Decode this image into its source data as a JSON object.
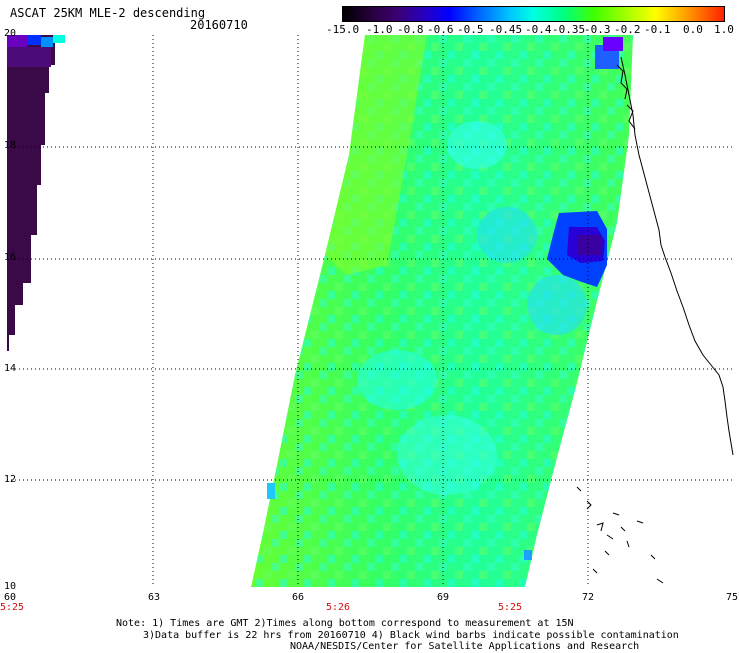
{
  "header": {
    "title": "ASCAT 25KM MLE-2 descending",
    "date": "20160710"
  },
  "colorbar": {
    "labels": [
      "-15.0",
      "-1.0",
      "-0.8",
      "-0.6",
      "-0.5",
      "-0.45",
      "-0.4",
      "-0.35",
      "-0.3",
      "-0.2",
      "-0.1",
      "0.0",
      "1.0"
    ]
  },
  "map": {
    "y_labels": [
      "20",
      "18",
      "16",
      "14",
      "12",
      "10"
    ],
    "x_labels": [
      "60",
      "63",
      "66",
      "69",
      "72",
      "75"
    ],
    "time_labels": [
      "5:25",
      "5:26",
      "5:25"
    ]
  },
  "footer": {
    "line1": "Note: 1) Times are GMT 2)Times along bottom correspond to measurement at 15N",
    "line2": "3)Data buffer is 22 hrs from 20160710 4) Black wind barbs indicate possible contamination",
    "line3": "NOAA/NESDIS/Center for Satellite Applications and Research"
  }
}
